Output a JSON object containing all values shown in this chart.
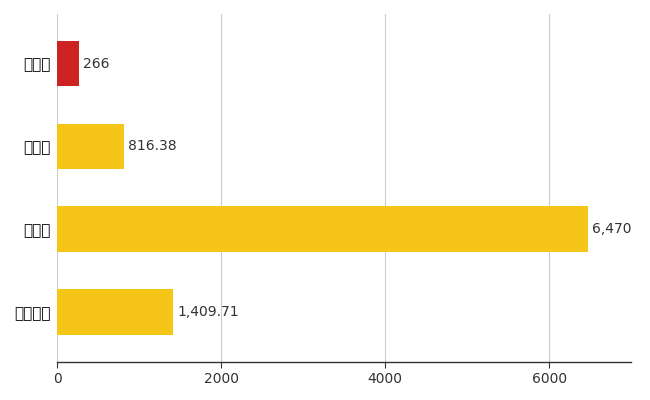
{
  "categories": [
    "中泊町",
    "県平均",
    "県最大",
    "全国平均"
  ],
  "values": [
    266,
    816.38,
    6470,
    1409.71
  ],
  "bar_colors": [
    "#cc2222",
    "#f5c518",
    "#f5c518",
    "#f5c518"
  ],
  "value_labels": [
    "266",
    "816.38",
    "6,470",
    "1,409.71"
  ],
  "xlim": [
    0,
    7000
  ],
  "xticks": [
    0,
    2000,
    4000,
    6000
  ],
  "xtick_labels": [
    "0",
    "2000",
    "4000",
    "6000"
  ],
  "background_color": "#ffffff",
  "bar_height": 0.55,
  "label_fontsize": 11,
  "tick_fontsize": 10,
  "value_label_fontsize": 10,
  "grid_color": "#cccccc",
  "grid_linewidth": 0.8
}
